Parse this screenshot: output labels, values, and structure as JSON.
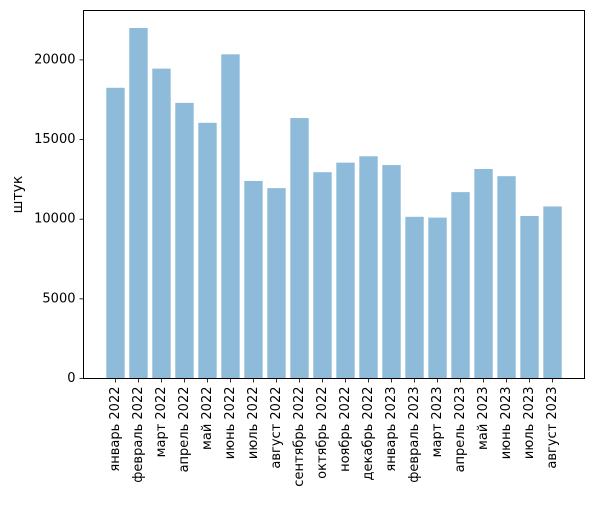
{
  "chart_data": {
    "type": "bar",
    "categories": [
      "январь 2022",
      "февраль 2022",
      "март 2022",
      "апрель 2022",
      "май 2022",
      "июнь 2022",
      "июль 2022",
      "август 2022",
      "сентябрь 2022",
      "октябрь 2022",
      "ноябрь 2022",
      "декабрь 2022",
      "январь 2023",
      "февраль 2023",
      "март 2023",
      "апрель 2023",
      "май 2023",
      "июнь 2023",
      "июль 2023",
      "август 2023"
    ],
    "values": [
      18250,
      22000,
      19450,
      17300,
      16050,
      20350,
      12400,
      11950,
      16350,
      12950,
      13550,
      13950,
      13400,
      10150,
      10100,
      11700,
      13150,
      12700,
      10200,
      10800
    ],
    "title": "",
    "xlabel": "",
    "ylabel": "штук",
    "ylim": [
      0,
      23100
    ],
    "yticks": [
      0,
      5000,
      10000,
      15000,
      20000
    ],
    "bar_color": "#8fbbda",
    "grid": false,
    "legend": "none"
  }
}
